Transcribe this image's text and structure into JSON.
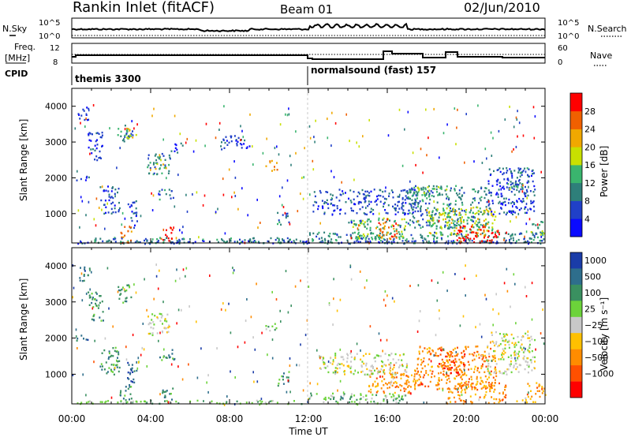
{
  "header": {
    "station": "Rankin Inlet (fitACF)",
    "beam": "Beam 01",
    "date": "02/Jun/2010"
  },
  "sky_panel": {
    "left_label": "N.Sky",
    "right_label": "N.Search",
    "left_ticks": [
      "10^5",
      "10^0"
    ],
    "right_ticks": [
      "10^5",
      "10^0"
    ]
  },
  "freq_panel": {
    "left_label_1": "Freq.",
    "left_label_2": "[MHz]",
    "left_ticks": [
      "12",
      "8"
    ],
    "right_label": "Nave",
    "right_ticks": [
      "60",
      "0"
    ]
  },
  "cpid": {
    "label": "CPID",
    "programs": [
      "themis 3300",
      "normalsound (fast) 157"
    ]
  },
  "time_axis": {
    "ticks": [
      "00:00",
      "04:00",
      "08:00",
      "12:00",
      "16:00",
      "20:00",
      "00:00"
    ],
    "label": "Time UT"
  },
  "range_axis": {
    "label": "Slant Range [km]",
    "ticks": [
      "1000",
      "2000",
      "3000",
      "4000"
    ]
  },
  "colors": {
    "axis": "#000000",
    "background": "#ffffff",
    "cpid_change": "#c8c8c8"
  },
  "chart_data": [
    {
      "type": "heatmap",
      "title": "Power",
      "ylabel": "Slant Range [km]",
      "xlabel": "Time UT",
      "ylim": [
        180,
        4500
      ],
      "xlim_hours": [
        0,
        24
      ],
      "colorbar": {
        "label": "Power [dB]",
        "ticks": [
          "4",
          "8",
          "12",
          "16",
          "20",
          "24",
          "28"
        ],
        "levels": [
          0,
          4,
          8,
          12,
          16,
          20,
          24,
          28,
          32
        ],
        "colors": [
          "#0a0aff",
          "#2040c8",
          "#2e7f7a",
          "#3ab56e",
          "#c8e000",
          "#f0a800",
          "#f06000",
          "#ff0000"
        ]
      },
      "patches": [
        {
          "t0": 0.0,
          "t1": 24.0,
          "r0": 180,
          "r1": 280,
          "level": 1
        },
        {
          "t0": 0.2,
          "t1": 1.0,
          "r0": 1950,
          "r1": 2100,
          "level": 1
        },
        {
          "t0": 0.3,
          "t1": 0.9,
          "r0": 3600,
          "r1": 4000,
          "level": 1
        },
        {
          "t0": 0.8,
          "t1": 1.6,
          "r0": 2500,
          "r1": 3300,
          "level": 1
        },
        {
          "t0": 1.4,
          "t1": 2.4,
          "r0": 1000,
          "r1": 1800,
          "level": 1
        },
        {
          "t0": 2.3,
          "t1": 3.1,
          "r0": 3000,
          "r1": 3500,
          "level": 2
        },
        {
          "t0": 2.6,
          "t1": 3.3,
          "r0": 3100,
          "r1": 3400,
          "level": 4
        },
        {
          "t0": 2.8,
          "t1": 3.3,
          "r0": 600,
          "r1": 1400,
          "level": 1
        },
        {
          "t0": 3.8,
          "t1": 5.0,
          "r0": 2100,
          "r1": 2700,
          "level": 2
        },
        {
          "t0": 4.2,
          "t1": 4.8,
          "r0": 2250,
          "r1": 2450,
          "level": 4
        },
        {
          "t0": 4.4,
          "t1": 5.2,
          "r0": 1400,
          "r1": 1700,
          "level": 2
        },
        {
          "t0": 5.0,
          "t1": 5.6,
          "r0": 2700,
          "r1": 3000,
          "level": 1
        },
        {
          "t0": 2.4,
          "t1": 3.0,
          "r0": 200,
          "r1": 700,
          "level": 6
        },
        {
          "t0": 4.5,
          "t1": 5.1,
          "r0": 200,
          "r1": 650,
          "level": 7
        },
        {
          "t0": 1.0,
          "t1": 11.5,
          "r0": 200,
          "r1": 350,
          "level": 2
        },
        {
          "t0": 10.4,
          "t1": 11.0,
          "r0": 700,
          "r1": 1100,
          "level": 2
        },
        {
          "t0": 9.8,
          "t1": 10.4,
          "r0": 2200,
          "r1": 2500,
          "level": 5
        },
        {
          "t0": 7.5,
          "t1": 9.0,
          "r0": 2800,
          "r1": 3200,
          "level": 1
        },
        {
          "t0": 12.0,
          "t1": 24.0,
          "r0": 200,
          "r1": 500,
          "level": 2
        },
        {
          "t0": 12.2,
          "t1": 17.5,
          "r0": 1000,
          "r1": 1700,
          "level": 1
        },
        {
          "t0": 14.0,
          "t1": 17.0,
          "r0": 300,
          "r1": 900,
          "level": 3
        },
        {
          "t0": 15.3,
          "t1": 16.5,
          "r0": 300,
          "r1": 800,
          "level": 6
        },
        {
          "t0": 17.0,
          "t1": 21.0,
          "r0": 600,
          "r1": 1800,
          "level": 2
        },
        {
          "t0": 18.0,
          "t1": 21.5,
          "r0": 400,
          "r1": 1200,
          "level": 4
        },
        {
          "t0": 19.5,
          "t1": 21.8,
          "r0": 200,
          "r1": 700,
          "level": 7
        },
        {
          "t0": 21.0,
          "t1": 23.5,
          "r0": 1000,
          "r1": 2300,
          "level": 1
        },
        {
          "t0": 22.0,
          "t1": 23.2,
          "r0": 1700,
          "r1": 2300,
          "level": 2
        },
        {
          "t0": 23.2,
          "t1": 24.0,
          "r0": 400,
          "r1": 800,
          "level": 3
        },
        {
          "t0": 17.0,
          "t1": 19.0,
          "r0": 1500,
          "r1": 1800,
          "level": 3
        }
      ]
    },
    {
      "type": "heatmap",
      "title": "Velocity",
      "ylabel": "Slant Range [km]",
      "xlabel": "Time UT",
      "ylim": [
        180,
        4500
      ],
      "xlim_hours": [
        0,
        24
      ],
      "colorbar": {
        "label": "Velocity  [m s⁻¹]",
        "ticks": [
          "1000",
          "500",
          "100",
          "25",
          "−25",
          "−100",
          "−500",
          "−1000"
        ],
        "levels": [
          1500,
          1000,
          500,
          100,
          25,
          -25,
          -100,
          -500,
          -1000,
          -1500
        ],
        "colors": [
          "#1a3ca8",
          "#2e6e8c",
          "#3a9060",
          "#6cd33a",
          "#c8c8c8",
          "#ffc000",
          "#ff8c00",
          "#ff5000",
          "#ff0000"
        ]
      },
      "patches": [
        {
          "t0": 0.2,
          "t1": 1.0,
          "r0": 1950,
          "r1": 2100,
          "level": 1
        },
        {
          "t0": 0.3,
          "t1": 0.9,
          "r0": 3600,
          "r1": 4000,
          "level": 1
        },
        {
          "t0": 0.8,
          "t1": 1.6,
          "r0": 2500,
          "r1": 3300,
          "level": 2
        },
        {
          "t0": 1.4,
          "t1": 2.4,
          "r0": 1000,
          "r1": 1800,
          "level": 2
        },
        {
          "t0": 2.3,
          "t1": 3.1,
          "r0": 3000,
          "r1": 3500,
          "level": 2
        },
        {
          "t0": 2.8,
          "t1": 3.3,
          "r0": 600,
          "r1": 1400,
          "level": 1
        },
        {
          "t0": 3.8,
          "t1": 5.0,
          "r0": 2100,
          "r1": 2700,
          "level": 4
        },
        {
          "t0": 4.4,
          "t1": 5.2,
          "r0": 1400,
          "r1": 1700,
          "level": 2
        },
        {
          "t0": 2.4,
          "t1": 3.0,
          "r0": 200,
          "r1": 700,
          "level": 2
        },
        {
          "t0": 4.5,
          "t1": 5.1,
          "r0": 200,
          "r1": 650,
          "level": 2
        },
        {
          "t0": 0.0,
          "t1": 12.0,
          "r0": 200,
          "r1": 300,
          "level": 3
        },
        {
          "t0": 9.8,
          "t1": 10.4,
          "r0": 2200,
          "r1": 2500,
          "level": 3
        },
        {
          "t0": 10.4,
          "t1": 11.0,
          "r0": 700,
          "r1": 1100,
          "level": 2
        },
        {
          "t0": 12.0,
          "t1": 17.0,
          "r0": 200,
          "r1": 500,
          "level": 3
        },
        {
          "t0": 15.0,
          "t1": 17.5,
          "r0": 500,
          "r1": 1300,
          "level": 6
        },
        {
          "t0": 17.5,
          "t1": 21.5,
          "r0": 600,
          "r1": 1800,
          "level": 6
        },
        {
          "t0": 19.0,
          "t1": 22.0,
          "r0": 200,
          "r1": 800,
          "level": 6
        },
        {
          "t0": 18.5,
          "t1": 20.0,
          "r0": 1000,
          "r1": 1700,
          "level": 7
        },
        {
          "t0": 12.5,
          "t1": 17.0,
          "r0": 1000,
          "r1": 1600,
          "level": 4
        },
        {
          "t0": 21.0,
          "t1": 23.5,
          "r0": 1000,
          "r1": 2200,
          "level": 4
        },
        {
          "t0": 23.0,
          "t1": 24.0,
          "r0": 400,
          "r1": 800,
          "level": 6
        },
        {
          "t0": 22.5,
          "t1": 23.5,
          "r0": 200,
          "r1": 400,
          "level": 5
        }
      ]
    }
  ]
}
